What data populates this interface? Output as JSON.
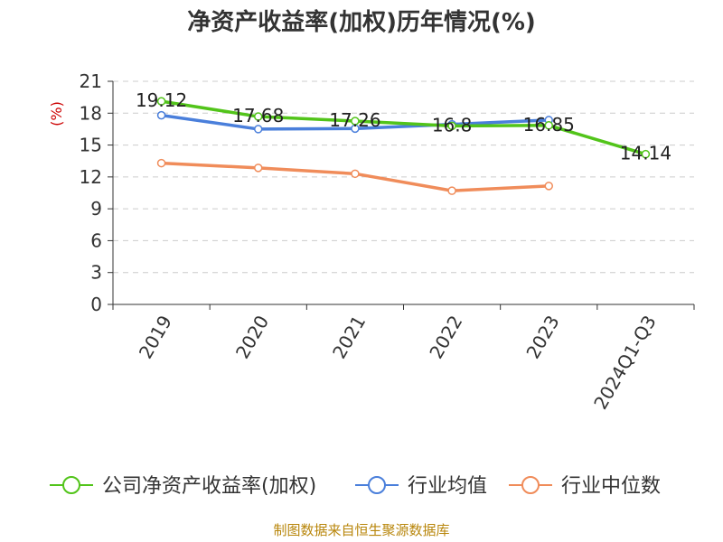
{
  "chart_data": {
    "type": "line",
    "title": "净资产收益率(加权)历年情况(%)",
    "ylabel": "(%)",
    "xlabel": "",
    "ylim": [
      0,
      21
    ],
    "yticks": [
      0,
      3,
      6,
      9,
      12,
      15,
      18,
      21
    ],
    "categories": [
      "2019",
      "2020",
      "2021",
      "2022",
      "2023",
      "2024Q1-Q3"
    ],
    "series": [
      {
        "name": "公司净资产收益率(加权)",
        "color": "#52c41a",
        "values": [
          19.12,
          17.68,
          17.26,
          16.8,
          16.85,
          14.14
        ],
        "labels": [
          "19.12",
          "17.68",
          "17.26",
          "16.8",
          "16.85",
          "14.14"
        ]
      },
      {
        "name": "行业均值",
        "color": "#4a7fdb",
        "values": [
          17.8,
          16.5,
          16.55,
          16.95,
          17.35,
          null
        ]
      },
      {
        "name": "行业中位数",
        "color": "#f08c5a",
        "values": [
          13.3,
          12.85,
          12.3,
          10.7,
          11.15,
          null
        ]
      }
    ],
    "grid": true,
    "legend_position": "bottom"
  },
  "footer": {
    "source": "制图数据来自恒生聚源数据库"
  }
}
